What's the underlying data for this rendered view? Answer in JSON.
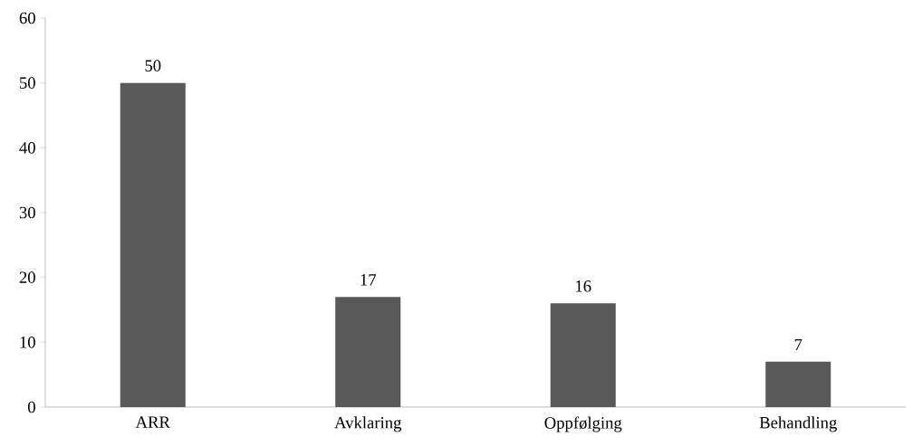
{
  "chart_data": {
    "type": "bar",
    "categories": [
      "ARR",
      "Avklaring",
      "Oppfølging",
      "Behandling"
    ],
    "values": [
      50,
      17,
      16,
      7
    ],
    "color": "#595959",
    "ylim": [
      0,
      60
    ],
    "yticks": [
      0,
      10,
      20,
      30,
      40,
      50,
      60
    ],
    "data_labels": true
  }
}
